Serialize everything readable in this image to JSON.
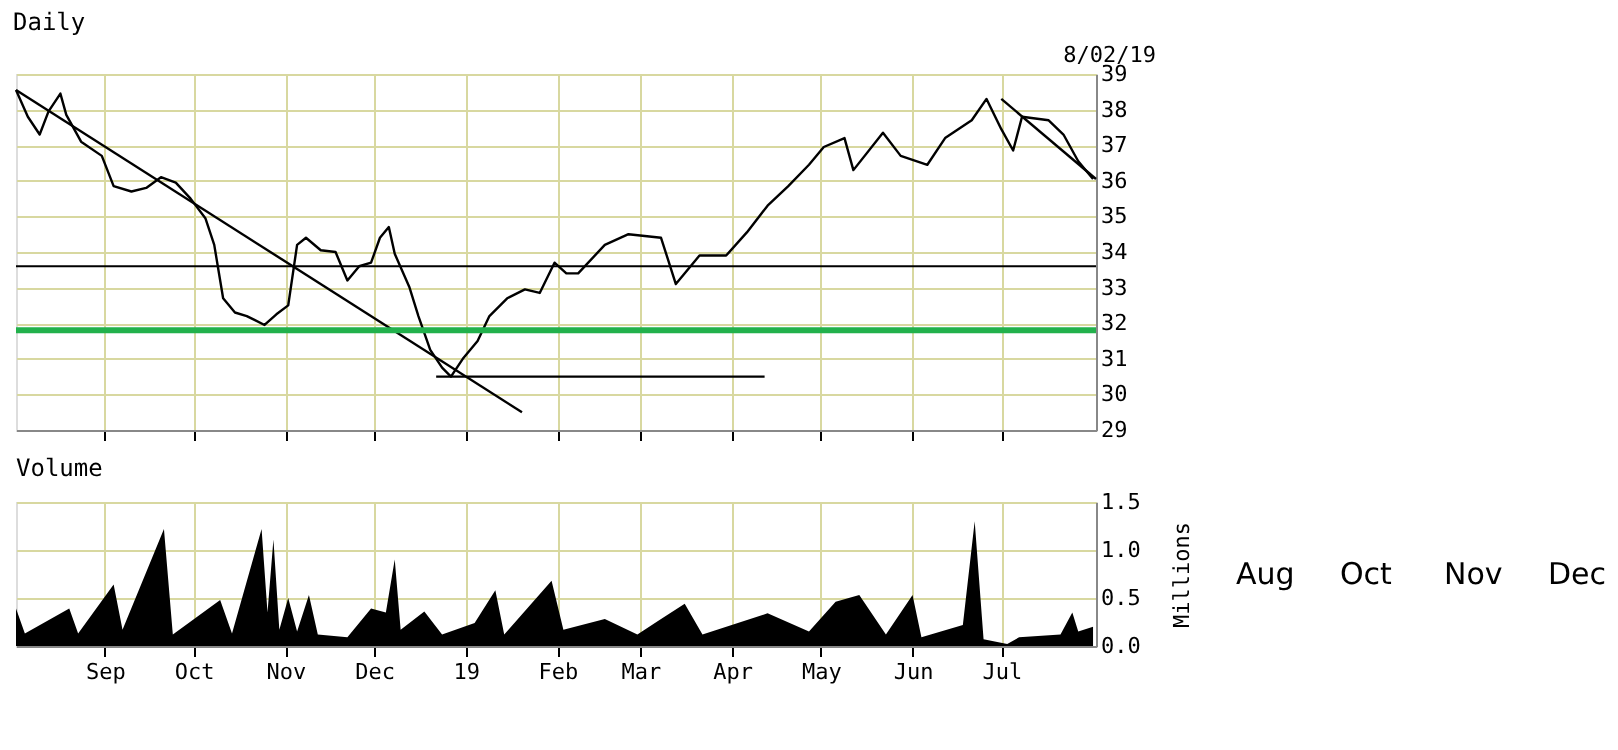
{
  "chart_data": [
    {
      "type": "line",
      "title": "Daily",
      "annotations": [
        "8/02/19"
      ],
      "grid": true,
      "tick_labels": "y",
      "xlim": [
        "2018-08-02",
        "2019-08-02"
      ],
      "ylim": [
        29,
        39
      ],
      "yticks": [
        29,
        30,
        31,
        32,
        33,
        34,
        35,
        36,
        37,
        38,
        39
      ],
      "xticks": [
        {
          "value": "2018-09-01",
          "label": null
        },
        {
          "value": "2018-10-01",
          "label": null
        },
        {
          "value": "2018-11-01",
          "label": null
        },
        {
          "value": "2018-12-01",
          "label": null
        },
        {
          "value": "2019-01-01",
          "label": null
        },
        {
          "value": "2019-02-01",
          "label": null
        },
        {
          "value": "2019-03-01",
          "label": null
        },
        {
          "value": "2019-04-01",
          "label": null
        },
        {
          "value": "2019-05-01",
          "label": null
        },
        {
          "value": "2019-06-01",
          "label": null
        },
        {
          "value": "2019-07-01",
          "label": null
        }
      ],
      "ref_lines": [
        {
          "axis": "y",
          "value": 33.6,
          "color": "#000000"
        },
        {
          "axis": "y",
          "value": 31.8,
          "color": "#22b14c"
        }
      ],
      "series": [
        {
          "color": "#000000",
          "x": [
            "2018-08-02",
            "2018-08-06",
            "2018-08-10",
            "2018-08-13",
            "2018-08-17",
            "2018-08-19",
            "2018-08-24",
            "2018-08-31",
            "2018-09-04",
            "2018-09-10",
            "2018-09-15",
            "2018-09-20",
            "2018-09-25",
            "2018-09-30",
            "2018-10-05",
            "2018-10-08",
            "2018-10-11",
            "2018-10-15",
            "2018-10-19",
            "2018-10-25",
            "2018-10-29",
            "2018-11-02",
            "2018-11-05",
            "2018-11-08",
            "2018-11-13",
            "2018-11-18",
            "2018-11-22",
            "2018-11-26",
            "2018-11-30",
            "2018-12-03",
            "2018-12-06",
            "2018-12-08",
            "2018-12-13",
            "2018-12-16",
            "2018-12-20",
            "2018-12-24",
            "2018-12-27",
            "2018-12-31",
            "2019-01-05",
            "2019-01-09",
            "2019-01-15",
            "2019-01-21",
            "2019-01-26",
            "2019-01-31",
            "2019-02-04",
            "2019-02-08",
            "2019-02-17",
            "2019-02-25",
            "2019-03-08",
            "2019-03-13",
            "2019-03-21",
            "2019-03-30",
            "2019-04-06",
            "2019-04-13",
            "2019-04-20",
            "2019-04-27",
            "2019-05-02",
            "2019-05-09",
            "2019-05-12",
            "2019-05-22",
            "2019-05-28",
            "2019-06-06",
            "2019-06-12",
            "2019-06-21",
            "2019-06-26",
            "2019-07-01",
            "2019-07-05",
            "2019-07-08",
            "2019-07-17",
            "2019-07-22",
            "2019-07-27",
            "2019-08-01"
          ],
          "values": [
            38.55,
            37.8,
            37.3,
            37.95,
            38.45,
            37.85,
            37.1,
            36.7,
            35.85,
            35.7,
            35.8,
            36.1,
            35.95,
            35.5,
            34.95,
            34.2,
            32.7,
            32.3,
            32.2,
            31.95,
            32.25,
            32.5,
            34.2,
            34.4,
            34.05,
            34.0,
            33.2,
            33.6,
            33.7,
            34.4,
            34.7,
            33.95,
            33.0,
            32.2,
            31.25,
            30.75,
            30.5,
            31.0,
            31.5,
            32.2,
            32.7,
            32.95,
            32.85,
            33.7,
            33.4,
            33.4,
            34.2,
            34.5,
            34.4,
            33.1,
            33.9,
            33.9,
            34.55,
            35.3,
            35.85,
            36.45,
            36.95,
            37.2,
            36.3,
            37.35,
            36.7,
            36.45,
            37.2,
            37.7,
            38.3,
            37.45,
            36.85,
            37.8,
            37.7,
            37.3,
            36.55,
            36.05
          ]
        },
        {
          "color": "#000000",
          "x": [
            "2018-08-02",
            "2019-01-20"
          ],
          "values": [
            38.55,
            29.5
          ]
        },
        {
          "color": "#000000",
          "x": [
            "2019-07-01",
            "2019-08-02"
          ],
          "values": [
            38.3,
            36.05
          ]
        },
        {
          "color": "#000000",
          "x": [
            "2018-12-22",
            "2019-04-12"
          ],
          "values": [
            30.5,
            30.5
          ]
        }
      ]
    },
    {
      "type": "area",
      "title": "Volume",
      "ylabel": "Millions",
      "annotations": [
        "Aug",
        "Oct",
        "Nov",
        "Dec"
      ],
      "grid": true,
      "xlim": [
        "2018-08-02",
        "2019-08-02"
      ],
      "ylim": [
        0,
        1.5
      ],
      "yticks": [
        {
          "value": 0,
          "label": "0.0"
        },
        0.5,
        {
          "value": 1,
          "label": "1.0"
        },
        1.5
      ],
      "xticks": [
        {
          "value": "2018-09-01",
          "label": "Sep"
        },
        {
          "value": "2018-10-01",
          "label": "Oct"
        },
        {
          "value": "2018-11-01",
          "label": "Nov"
        },
        {
          "value": "2018-12-01",
          "label": "Dec"
        },
        {
          "value": "2019-01-01",
          "label": "19"
        },
        {
          "value": "2019-02-01",
          "label": "Feb"
        },
        {
          "value": "2019-03-01",
          "label": "Mar"
        },
        {
          "value": "2019-04-01",
          "label": "Apr"
        },
        {
          "value": "2019-05-01",
          "label": "May"
        },
        {
          "value": "2019-06-01",
          "label": "Jun"
        },
        {
          "value": "2019-07-01",
          "label": "Jul"
        }
      ],
      "series": [
        {
          "color": "#000000",
          "x": [
            "2018-08-02",
            "2018-08-05",
            "2018-08-20",
            "2018-08-23",
            "2018-09-04",
            "2018-09-07",
            "2018-09-21",
            "2018-09-24",
            "2018-10-10",
            "2018-10-14",
            "2018-10-24",
            "2018-10-26",
            "2018-10-28",
            "2018-10-30",
            "2018-11-02",
            "2018-11-05",
            "2018-11-09",
            "2018-11-12",
            "2018-11-22",
            "2018-11-30",
            "2018-12-05",
            "2018-12-08",
            "2018-12-10",
            "2018-12-18",
            "2018-12-24",
            "2019-01-04",
            "2019-01-11",
            "2019-01-14",
            "2019-01-30",
            "2019-02-03",
            "2019-02-17",
            "2019-02-28",
            "2019-03-08",
            "2019-03-16",
            "2019-03-22",
            "2019-04-13",
            "2019-04-27",
            "2019-05-06",
            "2019-05-14",
            "2019-05-23",
            "2019-06-01",
            "2019-06-04",
            "2019-06-18",
            "2019-06-22",
            "2019-06-25",
            "2019-07-03",
            "2019-07-07",
            "2019-07-21",
            "2019-07-25",
            "2019-07-27",
            "2019-08-01"
          ],
          "values": [
            0.39,
            0.13,
            0.39,
            0.13,
            0.64,
            0.17,
            1.22,
            0.12,
            0.48,
            0.13,
            1.22,
            0.35,
            1.11,
            0.17,
            0.5,
            0.15,
            0.53,
            0.12,
            0.09,
            0.39,
            0.35,
            0.9,
            0.17,
            0.36,
            0.12,
            0.24,
            0.58,
            0.12,
            0.68,
            0.17,
            0.28,
            0.12,
            0.28,
            0.44,
            0.12,
            0.34,
            0.15,
            0.46,
            0.53,
            0.12,
            0.53,
            0.09,
            0.22,
            1.3,
            0.07,
            0.02,
            0.09,
            0.12,
            0.35,
            0.15,
            0.2
          ]
        }
      ]
    }
  ]
}
